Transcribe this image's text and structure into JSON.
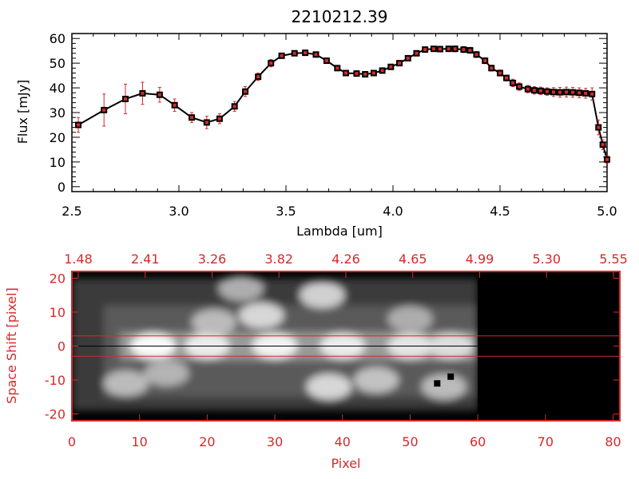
{
  "colors": {
    "data_red": "#d42a2a",
    "axis_black": "#000000",
    "image_frame": "#d42a2a"
  },
  "chart_data": [
    {
      "type": "line",
      "title": "2210212.39",
      "xlabel": "Lambda [um]",
      "ylabel": "Flux [mJy]",
      "xlim": [
        2.5,
        5.0
      ],
      "ylim": [
        -2,
        62
      ],
      "x_ticks": [
        "2.5",
        "3.0",
        "3.5",
        "4.0",
        "4.5",
        "5.0"
      ],
      "x_tick_values": [
        2.5,
        3.0,
        3.5,
        4.0,
        4.5,
        5.0
      ],
      "y_ticks": [
        "0",
        "10",
        "20",
        "30",
        "40",
        "50",
        "60"
      ],
      "y_tick_values": [
        0,
        10,
        20,
        30,
        40,
        50,
        60
      ],
      "series": [
        {
          "name": "Flux",
          "x": [
            2.53,
            2.65,
            2.75,
            2.83,
            2.91,
            2.98,
            3.06,
            3.13,
            3.19,
            3.26,
            3.31,
            3.37,
            3.43,
            3.48,
            3.54,
            3.59,
            3.64,
            3.69,
            3.74,
            3.78,
            3.83,
            3.87,
            3.91,
            3.95,
            3.99,
            4.03,
            4.07,
            4.11,
            4.15,
            4.19,
            4.22,
            4.26,
            4.29,
            4.33,
            4.36,
            4.39,
            4.43,
            4.46,
            4.5,
            4.53,
            4.56,
            4.59,
            4.63,
            4.66,
            4.69,
            4.72,
            4.75,
            4.78,
            4.81,
            4.84,
            4.87,
            4.9,
            4.93,
            4.96,
            4.98,
            5.0
          ],
          "y": [
            25.0,
            31.0,
            35.5,
            37.8,
            37.2,
            33.0,
            28.0,
            26.0,
            27.5,
            32.5,
            38.5,
            44.5,
            50.0,
            53.0,
            54.0,
            54.2,
            53.5,
            51.0,
            48.0,
            46.0,
            45.8,
            45.5,
            46.0,
            47.0,
            48.5,
            50.0,
            52.0,
            54.0,
            55.5,
            55.8,
            55.7,
            55.8,
            55.8,
            55.5,
            55.2,
            53.5,
            51.0,
            48.0,
            46.0,
            44.0,
            42.0,
            40.5,
            39.5,
            39.0,
            38.8,
            38.5,
            38.3,
            38.2,
            38.3,
            38.2,
            38.0,
            37.8,
            37.5,
            24.0,
            17.0,
            11.0
          ],
          "err": [
            3.0,
            6.5,
            6.0,
            4.5,
            3.0,
            2.5,
            2.0,
            2.5,
            2.0,
            2.0,
            2.0,
            1.5,
            1.5,
            1.0,
            1.0,
            1.0,
            1.0,
            1.0,
            1.0,
            1.0,
            1.0,
            1.0,
            1.0,
            1.0,
            1.0,
            1.0,
            1.0,
            1.0,
            1.0,
            1.0,
            1.0,
            1.0,
            1.2,
            1.2,
            1.2,
            1.2,
            1.2,
            1.2,
            1.2,
            1.2,
            1.5,
            1.5,
            1.5,
            1.5,
            1.5,
            1.5,
            1.8,
            2.0,
            2.0,
            2.0,
            2.0,
            2.0,
            2.5,
            3.0,
            2.0,
            1.5
          ]
        }
      ]
    },
    {
      "type": "heatmap",
      "xlabel": "Pixel",
      "ylabel": "Space Shift [pixel]",
      "xlim": [
        0,
        81
      ],
      "ylim": [
        -22,
        22
      ],
      "x_ticks": [
        "0",
        "10",
        "20",
        "30",
        "40",
        "50",
        "60",
        "70",
        "80"
      ],
      "x_tick_values": [
        0,
        10,
        20,
        30,
        40,
        50,
        60,
        70,
        80
      ],
      "y_ticks": [
        "20",
        "10",
        "0",
        "-10",
        "-20"
      ],
      "y_tick_values": [
        20,
        10,
        0,
        -10,
        -20
      ],
      "top_axis_ticks": [
        "1.48",
        "2.41",
        "3.26",
        "3.82",
        "4.26",
        "4.65",
        "4.99",
        "5.30",
        "5.55"
      ],
      "data_extent_pixel": 60,
      "aperture_lines": [
        3,
        -3
      ],
      "center_line": 0,
      "bright_blobs": [
        {
          "x": 12,
          "y": 0,
          "v": 1.0
        },
        {
          "x": 20,
          "y": 0,
          "v": 0.9
        },
        {
          "x": 30,
          "y": 0,
          "v": 0.95
        },
        {
          "x": 40,
          "y": 0,
          "v": 0.9
        },
        {
          "x": 50,
          "y": 0,
          "v": 0.85
        },
        {
          "x": 56,
          "y": 0,
          "v": 0.8
        },
        {
          "x": 28,
          "y": 9,
          "v": 0.75
        },
        {
          "x": 37,
          "y": 15,
          "v": 0.7
        },
        {
          "x": 21,
          "y": 7,
          "v": 0.55
        },
        {
          "x": 25,
          "y": 17,
          "v": 0.45
        },
        {
          "x": 38,
          "y": -12,
          "v": 0.75
        },
        {
          "x": 45,
          "y": -10,
          "v": 0.6
        },
        {
          "x": 14,
          "y": -8,
          "v": 0.5
        },
        {
          "x": 8,
          "y": -11,
          "v": 0.55
        },
        {
          "x": 55,
          "y": -12,
          "v": 0.55
        },
        {
          "x": 50,
          "y": 8,
          "v": 0.45
        }
      ],
      "dark_pixels": [
        {
          "x": 54,
          "y": -11
        },
        {
          "x": 56,
          "y": -9
        }
      ]
    }
  ]
}
